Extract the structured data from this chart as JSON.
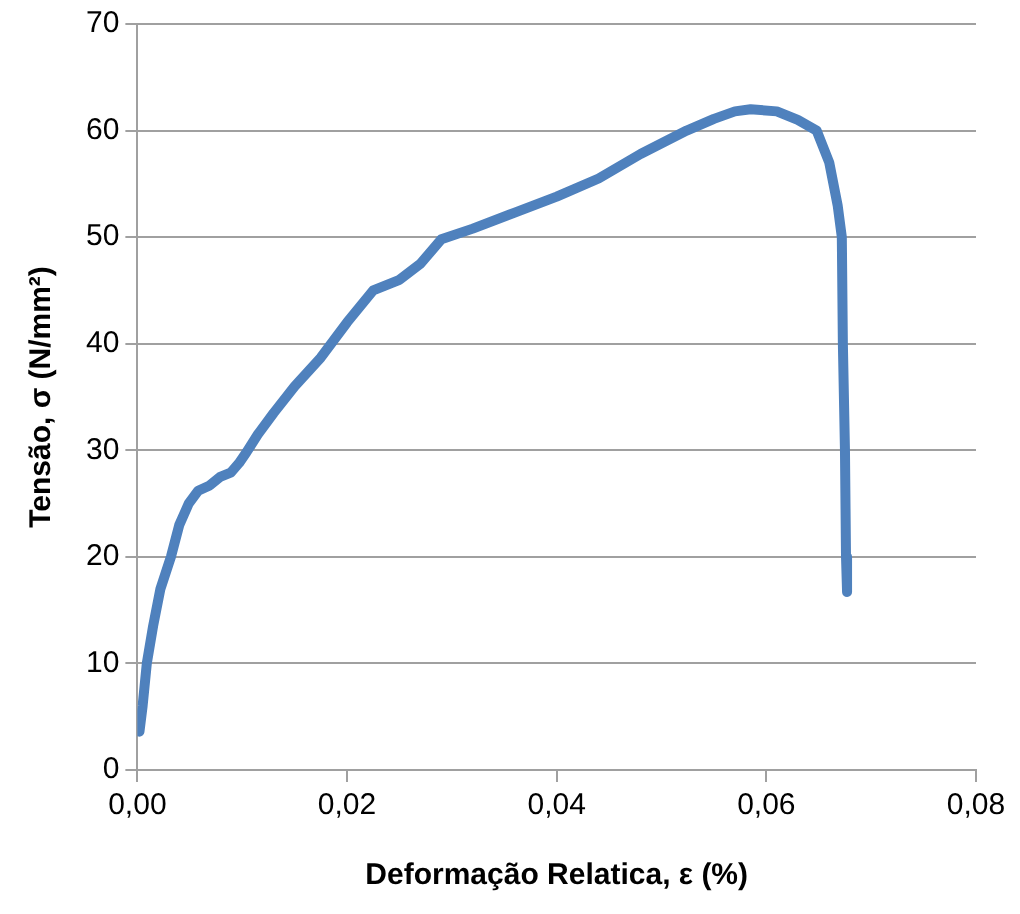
{
  "chart_data": {
    "type": "line",
    "xlabel": "Deformação Relatica, ε (%)",
    "ylabel": "Tensão, σ (N/mm²)",
    "xlim": [
      0,
      0.08
    ],
    "xticks": [
      {
        "value": 0,
        "label": "0,00"
      },
      {
        "value": 0.02,
        "label": "0,02"
      },
      {
        "value": 0.04,
        "label": "0,04"
      },
      {
        "value": 0.06,
        "label": "0,06"
      },
      {
        "value": 0.08,
        "label": "0,08"
      }
    ],
    "ylim": [
      0,
      70
    ],
    "yticks": [
      0,
      10,
      20,
      30,
      40,
      50,
      60,
      70
    ],
    "grid": "y",
    "legend": false,
    "marker": "none",
    "line_style": "solid",
    "series": [
      {
        "color": "#4f81bd",
        "x": [
          0.0002,
          0.0005,
          0.0009,
          0.0015,
          0.0022,
          0.0032,
          0.004,
          0.0049,
          0.0058,
          0.0069,
          0.0079,
          0.0089,
          0.0097,
          0.0104,
          0.0115,
          0.013,
          0.015,
          0.0175,
          0.02,
          0.0225,
          0.025,
          0.027,
          0.029,
          0.032,
          0.036,
          0.04,
          0.044,
          0.048,
          0.0524,
          0.055,
          0.057,
          0.0585,
          0.061,
          0.063,
          0.0648,
          0.066,
          0.0668,
          0.0672,
          0.0673,
          0.0675,
          0.0676,
          0.0677
        ],
        "values": [
          3.6,
          6,
          10,
          13.5,
          17,
          20,
          23,
          25,
          26.2,
          26.7,
          27.5,
          27.9,
          28.8,
          29.8,
          31.5,
          33.5,
          36,
          38.7,
          42,
          45,
          46,
          47.5,
          49.8,
          50.8,
          52.3,
          53.8,
          55.5,
          57.8,
          60,
          61.1,
          61.8,
          62,
          61.8,
          61,
          60,
          57,
          53,
          50,
          40,
          30,
          20,
          16.7
        ]
      }
    ]
  }
}
